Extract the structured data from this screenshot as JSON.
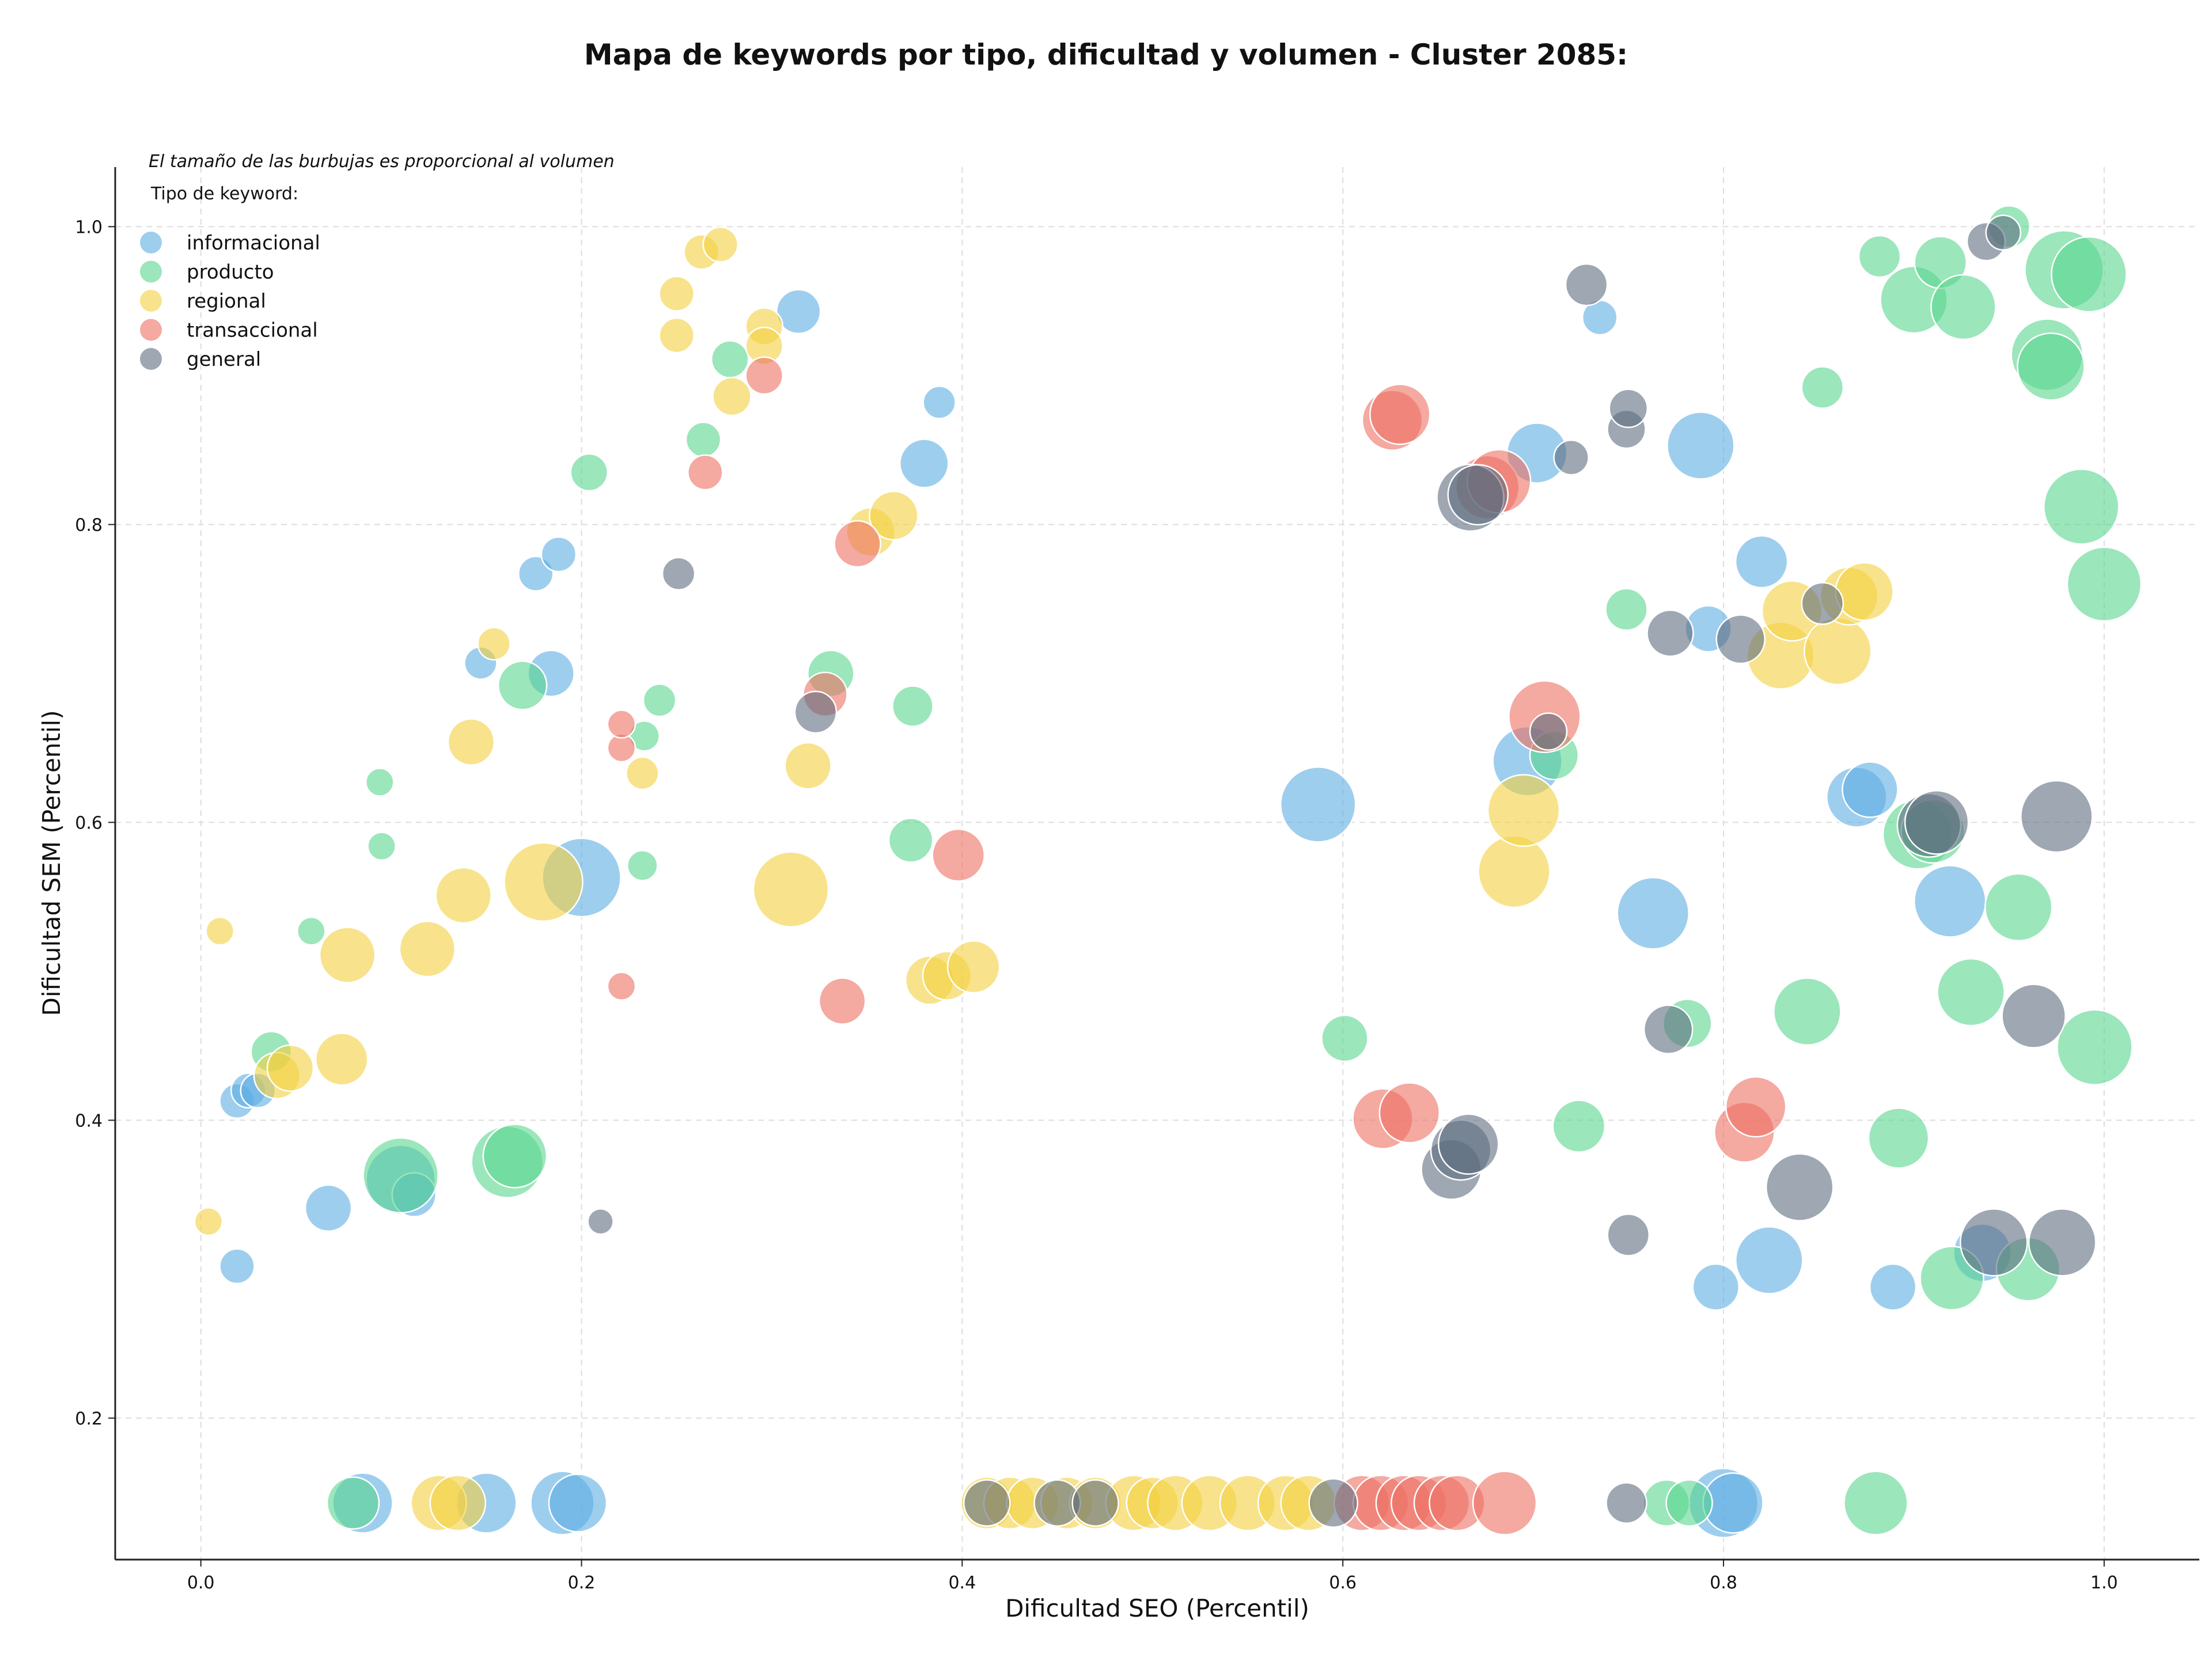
{
  "chart_data": {
    "type": "scatter",
    "title": "Mapa de keywords por tipo, dificultad y volumen - Cluster 2085:",
    "xlabel": "Dificultad SEO (Percentil)",
    "ylabel": "Dificultad SEM (Percentil)",
    "xlim": [
      -0.045,
      1.05
    ],
    "ylim": [
      0.105,
      1.04
    ],
    "xticks": [
      0.0,
      0.2,
      0.4,
      0.6,
      0.8,
      1.0
    ],
    "xtick_labels": [
      "0.0",
      "0.2",
      "0.4",
      "0.6",
      "0.8",
      "1.0"
    ],
    "yticks": [
      0.2,
      0.4,
      0.6,
      0.8,
      1.0
    ],
    "ytick_labels": [
      "0.2",
      "0.4",
      "0.6",
      "0.8",
      "1.0"
    ],
    "grid": true,
    "note": "El tamaño de las burbujas es proporcional al volumen",
    "legend": {
      "title": "Tipo de keyword:",
      "position": "top-left",
      "entries": [
        "informacional",
        "producto",
        "regional",
        "transaccional",
        "general"
      ]
    },
    "colors": {
      "informacional": "#5DADE2",
      "producto": "#58D68D",
      "regional": "#F4D03F",
      "transaccional": "#EC7063",
      "general": "#5D6D7E"
    },
    "series": [
      {
        "name": "informacional",
        "points": [
          [
            0.019,
            0.413,
            30
          ],
          [
            0.025,
            0.42,
            30
          ],
          [
            0.03,
            0.42,
            30
          ],
          [
            0.019,
            0.302,
            30
          ],
          [
            0.067,
            0.341,
            40
          ],
          [
            0.105,
            0.36,
            60
          ],
          [
            0.112,
            0.35,
            38
          ],
          [
            0.147,
            0.707,
            28
          ],
          [
            0.176,
            0.767,
            30
          ],
          [
            0.188,
            0.78,
            30
          ],
          [
            0.184,
            0.7,
            40
          ],
          [
            0.2,
            0.563,
            68
          ],
          [
            0.314,
            0.943,
            38
          ],
          [
            0.38,
            0.841,
            42
          ],
          [
            0.388,
            0.882,
            28
          ],
          [
            0.587,
            0.612,
            65
          ],
          [
            0.697,
            0.641,
            60
          ],
          [
            0.702,
            0.848,
            52
          ],
          [
            0.735,
            0.939,
            30
          ],
          [
            0.763,
            0.539,
            62
          ],
          [
            0.788,
            0.853,
            58
          ],
          [
            0.792,
            0.73,
            40
          ],
          [
            0.796,
            0.288,
            40
          ],
          [
            0.82,
            0.775,
            45
          ],
          [
            0.824,
            0.306,
            58
          ],
          [
            0.87,
            0.617,
            52
          ],
          [
            0.877,
            0.622,
            48
          ],
          [
            0.889,
            0.288,
            40
          ],
          [
            0.919,
            0.547,
            62
          ],
          [
            0.936,
            0.311,
            50
          ],
          [
            0.085,
            0.143,
            52
          ],
          [
            0.15,
            0.143,
            52
          ],
          [
            0.19,
            0.143,
            55
          ],
          [
            0.198,
            0.143,
            50
          ],
          [
            0.8,
            0.143,
            60
          ],
          [
            0.805,
            0.143,
            52
          ]
        ]
      },
      {
        "name": "producto",
        "points": [
          [
            0.037,
            0.446,
            35
          ],
          [
            0.058,
            0.527,
            24
          ],
          [
            0.094,
            0.627,
            24
          ],
          [
            0.095,
            0.584,
            24
          ],
          [
            0.105,
            0.363,
            65
          ],
          [
            0.161,
            0.372,
            62
          ],
          [
            0.165,
            0.376,
            55
          ],
          [
            0.169,
            0.692,
            42
          ],
          [
            0.204,
            0.835,
            32
          ],
          [
            0.232,
            0.571,
            26
          ],
          [
            0.233,
            0.658,
            26
          ],
          [
            0.241,
            0.682,
            28
          ],
          [
            0.264,
            0.857,
            30
          ],
          [
            0.278,
            0.911,
            32
          ],
          [
            0.331,
            0.7,
            40
          ],
          [
            0.373,
            0.588,
            38
          ],
          [
            0.374,
            0.678,
            35
          ],
          [
            0.601,
            0.455,
            40
          ],
          [
            0.711,
            0.645,
            42
          ],
          [
            0.724,
            0.396,
            45
          ],
          [
            0.749,
            0.743,
            36
          ],
          [
            0.781,
            0.465,
            42
          ],
          [
            0.844,
            0.473,
            58
          ],
          [
            0.852,
            0.892,
            36
          ],
          [
            0.882,
            0.98,
            36
          ],
          [
            0.892,
            0.388,
            52
          ],
          [
            0.9,
            0.951,
            58
          ],
          [
            0.902,
            0.592,
            60
          ],
          [
            0.91,
            0.594,
            55
          ],
          [
            0.914,
            0.976,
            45
          ],
          [
            0.92,
            0.294,
            55
          ],
          [
            0.926,
            0.946,
            56
          ],
          [
            0.93,
            0.486,
            58
          ],
          [
            0.95,
            1.0,
            36
          ],
          [
            0.955,
            0.543,
            58
          ],
          [
            0.96,
            0.3,
            55
          ],
          [
            0.97,
            0.914,
            62
          ],
          [
            0.972,
            0.906,
            58
          ],
          [
            0.979,
            0.971,
            68
          ],
          [
            0.988,
            0.812,
            65
          ],
          [
            0.992,
            0.968,
            65
          ],
          [
            0.995,
            0.449,
            65
          ],
          [
            1.0,
            0.76,
            64
          ],
          [
            0.08,
            0.143,
            45
          ],
          [
            0.77,
            0.143,
            40
          ],
          [
            0.782,
            0.143,
            40
          ],
          [
            0.88,
            0.143,
            55
          ]
        ]
      },
      {
        "name": "regional",
        "points": [
          [
            0.004,
            0.332,
            24
          ],
          [
            0.01,
            0.527,
            24
          ],
          [
            0.04,
            0.43,
            40
          ],
          [
            0.047,
            0.435,
            40
          ],
          [
            0.077,
            0.511,
            48
          ],
          [
            0.074,
            0.441,
            45
          ],
          [
            0.119,
            0.515,
            48
          ],
          [
            0.138,
            0.551,
            48
          ],
          [
            0.142,
            0.654,
            40
          ],
          [
            0.154,
            0.72,
            28
          ],
          [
            0.18,
            0.56,
            68
          ],
          [
            0.232,
            0.633,
            28
          ],
          [
            0.25,
            0.955,
            30
          ],
          [
            0.25,
            0.927,
            30
          ],
          [
            0.263,
            0.983,
            30
          ],
          [
            0.273,
            0.988,
            30
          ],
          [
            0.279,
            0.886,
            33
          ],
          [
            0.296,
            0.933,
            32
          ],
          [
            0.296,
            0.92,
            32
          ],
          [
            0.31,
            0.555,
            65
          ],
          [
            0.319,
            0.638,
            40
          ],
          [
            0.352,
            0.795,
            42
          ],
          [
            0.364,
            0.806,
            42
          ],
          [
            0.383,
            0.494,
            42
          ],
          [
            0.392,
            0.497,
            42
          ],
          [
            0.406,
            0.503,
            45
          ],
          [
            0.69,
            0.567,
            62
          ],
          [
            0.695,
            0.608,
            62
          ],
          [
            0.83,
            0.712,
            58
          ],
          [
            0.836,
            0.742,
            52
          ],
          [
            0.86,
            0.715,
            58
          ],
          [
            0.866,
            0.752,
            50
          ],
          [
            0.874,
            0.755,
            50
          ],
          [
            0.125,
            0.143,
            48
          ],
          [
            0.135,
            0.143,
            48
          ],
          [
            0.413,
            0.143,
            45
          ],
          [
            0.425,
            0.143,
            45
          ],
          [
            0.437,
            0.143,
            45
          ],
          [
            0.455,
            0.143,
            45
          ],
          [
            0.47,
            0.143,
            45
          ],
          [
            0.49,
            0.143,
            48
          ],
          [
            0.5,
            0.143,
            45
          ],
          [
            0.512,
            0.143,
            48
          ],
          [
            0.53,
            0.143,
            48
          ],
          [
            0.55,
            0.143,
            48
          ],
          [
            0.57,
            0.143,
            48
          ],
          [
            0.582,
            0.143,
            48
          ]
        ]
      },
      {
        "name": "transaccional",
        "points": [
          [
            0.221,
            0.49,
            24
          ],
          [
            0.221,
            0.65,
            24
          ],
          [
            0.221,
            0.666,
            24
          ],
          [
            0.265,
            0.835,
            30
          ],
          [
            0.296,
            0.9,
            32
          ],
          [
            0.328,
            0.686,
            38
          ],
          [
            0.337,
            0.48,
            40
          ],
          [
            0.345,
            0.787,
            40
          ],
          [
            0.398,
            0.578,
            45
          ],
          [
            0.621,
            0.401,
            52
          ],
          [
            0.626,
            0.87,
            52
          ],
          [
            0.63,
            0.874,
            52
          ],
          [
            0.635,
            0.405,
            52
          ],
          [
            0.676,
            0.825,
            55
          ],
          [
            0.682,
            0.829,
            55
          ],
          [
            0.706,
            0.671,
            62
          ],
          [
            0.811,
            0.392,
            52
          ],
          [
            0.817,
            0.409,
            52
          ],
          [
            0.61,
            0.143,
            48
          ],
          [
            0.62,
            0.143,
            48
          ],
          [
            0.632,
            0.143,
            48
          ],
          [
            0.64,
            0.143,
            48
          ],
          [
            0.652,
            0.143,
            48
          ],
          [
            0.66,
            0.143,
            48
          ],
          [
            0.685,
            0.143,
            55
          ]
        ]
      },
      {
        "name": "general",
        "points": [
          [
            0.21,
            0.332,
            22
          ],
          [
            0.251,
            0.767,
            28
          ],
          [
            0.323,
            0.674,
            36
          ],
          [
            0.667,
            0.818,
            58
          ],
          [
            0.671,
            0.82,
            52
          ],
          [
            0.72,
            0.845,
            30
          ],
          [
            0.657,
            0.367,
            52
          ],
          [
            0.662,
            0.38,
            52
          ],
          [
            0.666,
            0.384,
            52
          ],
          [
            0.708,
            0.661,
            32
          ],
          [
            0.728,
            0.961,
            36
          ],
          [
            0.749,
            0.864,
            33
          ],
          [
            0.75,
            0.878,
            33
          ],
          [
            0.75,
            0.323,
            36
          ],
          [
            0.771,
            0.461,
            42
          ],
          [
            0.772,
            0.727,
            40
          ],
          [
            0.809,
            0.723,
            42
          ],
          [
            0.84,
            0.355,
            58
          ],
          [
            0.852,
            0.747,
            36
          ],
          [
            0.908,
            0.598,
            55
          ],
          [
            0.912,
            0.6,
            55
          ],
          [
            0.938,
            0.99,
            33
          ],
          [
            0.942,
            0.318,
            58
          ],
          [
            0.947,
            0.996,
            30
          ],
          [
            0.963,
            0.47,
            55
          ],
          [
            0.975,
            0.604,
            62
          ],
          [
            0.978,
            0.318,
            58
          ],
          [
            0.413,
            0.143,
            40
          ],
          [
            0.45,
            0.143,
            40
          ],
          [
            0.47,
            0.143,
            40
          ],
          [
            0.595,
            0.143,
            42
          ],
          [
            0.749,
            0.143,
            35
          ]
        ]
      }
    ]
  }
}
